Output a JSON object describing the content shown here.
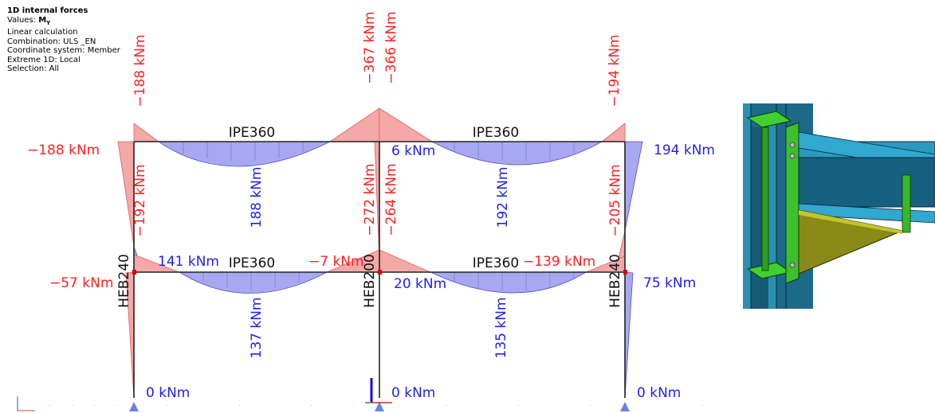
{
  "info": {
    "title": "1D internal forces",
    "values_prefix": "Values: ",
    "values_symbol": "M",
    "values_sub": "Y",
    "calc": "Linear calculation",
    "combination": "Combination: ULS _EN",
    "coord": "Coordinate system: Member",
    "extreme": "Extreme 1D: Local",
    "selection": "Selection: All"
  },
  "colors": {
    "negative": "#ff2222",
    "positive": "#2222ee",
    "neg_fill": "#f4a8a8",
    "pos_fill": "#a8a8f0"
  },
  "sections": {
    "beam_top_left": "IPE360",
    "beam_top_right": "IPE360",
    "beam_bot_left": "IPE360",
    "beam_bot_right": "IPE360",
    "col_left": "HEB240",
    "col_mid": "HEB200",
    "col_right": "HEB240"
  },
  "labels": {
    "top_left_end": "−188 kNm",
    "top_mid_a": "−367 kNm",
    "top_mid_b": "−366 kNm",
    "top_right_end": "−194 kNm",
    "left_col_top": "−188 kNm",
    "right_col_top": "194 kNm",
    "top_mid_small": "6 kNm",
    "top_left_span": "188 kNm",
    "top_right_span": "192 kNm",
    "left_col_mid": "−192 kNm",
    "mid_col_a": "−272 kNm",
    "mid_col_b": "−264 kNm",
    "right_col_mid": "−205 kNm",
    "bot_left_end": "141 kNm",
    "bot_mid_neg": "−7 kNm",
    "bot_right_neg": "−139 kNm",
    "left_col_bot": "−57 kNm",
    "right_col_bot": "75 kNm",
    "bot_mid_pos": "20 kNm",
    "bot_left_span": "137 kNm",
    "bot_right_span": "135 kNm",
    "base_left": "0 kNm",
    "base_mid": "0 kNm",
    "base_right": "0 kNm"
  }
}
